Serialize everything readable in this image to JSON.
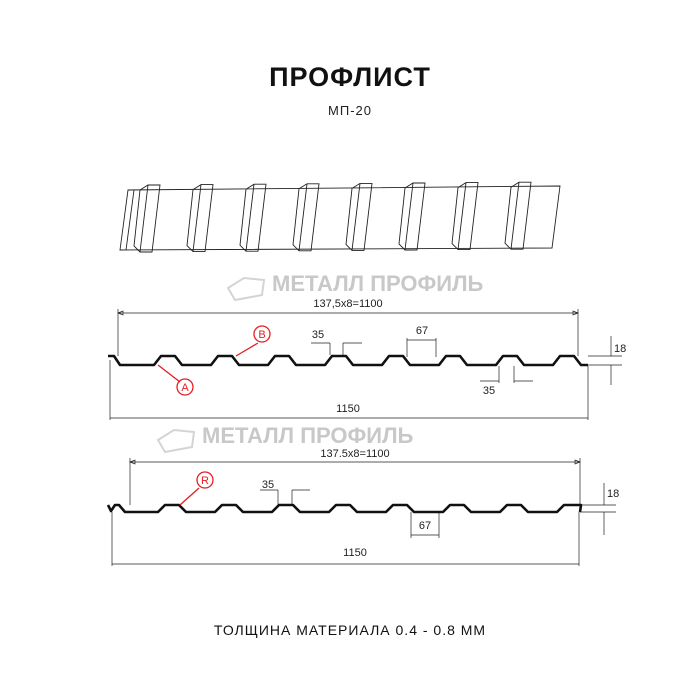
{
  "header": {
    "title": "ПРОФЛИСТ",
    "subtitle": "МП-20"
  },
  "watermark": "МЕТАЛЛ ПРОФИЛЬ",
  "drawing1": {
    "pitch_label": "137,5x8=1100",
    "width_label": "1150",
    "crest_label": "35",
    "pitch_top_label": "67",
    "trough_label": "35",
    "height_label": "18",
    "marker_a": "A",
    "marker_b": "B"
  },
  "drawing2": {
    "pitch_label": "137.5x8=1100",
    "width_label": "1150",
    "crest_label": "35",
    "trough_label": "67",
    "height_label": "18",
    "marker_r": "R"
  },
  "footer": {
    "thickness": "ТОЛЩИНА МАТЕРИАЛА 0.4 - 0.8 ММ"
  },
  "colors": {
    "profile": "#111111",
    "marker": "#e31e24",
    "watermark": "#c8c8c8"
  }
}
